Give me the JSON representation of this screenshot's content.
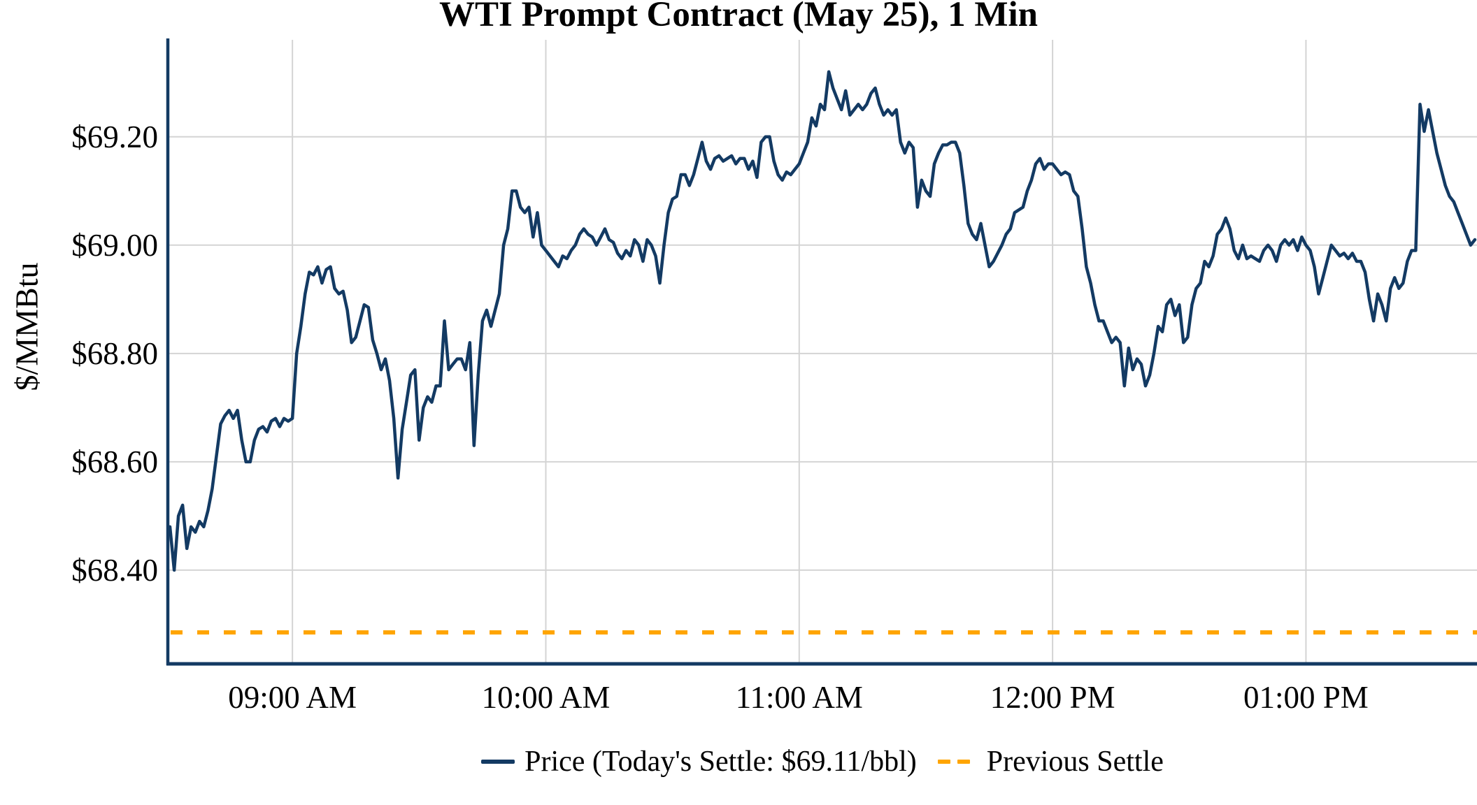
{
  "chart_data": {
    "type": "line",
    "title": "WTI Prompt Contract (May 25), 1 Min",
    "ylabel": "$/MMBtu",
    "grid": true,
    "x_axis": {
      "tick_labels": [
        "09:00 AM",
        "10:00 AM",
        "11:00 AM",
        "12:00 PM",
        "01:00 PM"
      ],
      "tick_minutes_from_9am": [
        0,
        60,
        120,
        180,
        240
      ],
      "xlim_minutes_from_9am": [
        -29.5,
        280.5
      ]
    },
    "y_axis": {
      "tick_labels": [
        "$69.20",
        "$69.00",
        "$68.80",
        "$68.60",
        "$68.40"
      ],
      "tick_values": [
        69.2,
        69.0,
        68.8,
        68.6,
        68.4
      ],
      "ylim": [
        68.227,
        69.379
      ]
    },
    "legend": {
      "position": "bottom-center",
      "entries": [
        {
          "label": "Price (Today's Settle: $69.11/bbl)",
          "style": "solid",
          "color": "#133a63"
        },
        {
          "label": "Previous Settle",
          "style": "dashed",
          "color": "#ffa500"
        }
      ]
    },
    "today_settle_text": "$69.11/bbl",
    "series": [
      {
        "name": "Price",
        "type": "line",
        "color": "#133a63",
        "start_time": "08:31 AM",
        "start_minutes_from_9am": -29,
        "interval_minutes": 1,
        "values": [
          68.48,
          68.4,
          68.5,
          68.52,
          68.44,
          68.48,
          68.47,
          68.49,
          68.48,
          68.51,
          68.55,
          68.61,
          68.67,
          68.685,
          68.695,
          68.68,
          68.695,
          68.64,
          68.6,
          68.6,
          68.64,
          68.66,
          68.665,
          68.655,
          68.675,
          68.68,
          68.665,
          68.68,
          68.675,
          68.68,
          68.8,
          68.85,
          68.91,
          68.95,
          68.945,
          68.96,
          68.93,
          68.955,
          68.96,
          68.92,
          68.91,
          68.915,
          68.88,
          68.82,
          68.83,
          68.86,
          68.89,
          68.885,
          68.825,
          68.8,
          68.77,
          68.79,
          68.75,
          68.68,
          68.57,
          68.66,
          68.71,
          68.76,
          68.77,
          68.64,
          68.7,
          68.72,
          68.71,
          68.74,
          68.74,
          68.86,
          68.77,
          68.78,
          68.79,
          68.79,
          68.77,
          68.82,
          68.63,
          68.76,
          68.86,
          68.88,
          68.85,
          68.88,
          68.91,
          69.0,
          69.03,
          69.1,
          69.1,
          69.07,
          69.06,
          69.07,
          69.015,
          69.06,
          69.0,
          68.99,
          68.98,
          68.97,
          68.96,
          68.98,
          68.975,
          68.99,
          69.0,
          69.02,
          69.03,
          69.02,
          69.015,
          69.0,
          69.015,
          69.03,
          69.01,
          69.005,
          68.985,
          68.975,
          68.99,
          68.98,
          69.01,
          69.0,
          68.97,
          69.01,
          69.0,
          68.98,
          68.93,
          69.0,
          69.06,
          69.085,
          69.09,
          69.13,
          69.13,
          69.11,
          69.13,
          69.16,
          69.19,
          69.155,
          69.14,
          69.16,
          69.165,
          69.155,
          69.16,
          69.165,
          69.15,
          69.16,
          69.16,
          69.14,
          69.155,
          69.125,
          69.19,
          69.2,
          69.2,
          69.155,
          69.13,
          69.12,
          69.135,
          69.13,
          69.14,
          69.15,
          69.17,
          69.19,
          69.235,
          69.22,
          69.26,
          69.25,
          69.32,
          69.29,
          69.27,
          69.25,
          69.285,
          69.24,
          69.25,
          69.26,
          69.25,
          69.26,
          69.28,
          69.29,
          69.26,
          69.24,
          69.25,
          69.24,
          69.25,
          69.19,
          69.17,
          69.19,
          69.18,
          69.07,
          69.12,
          69.1,
          69.09,
          69.15,
          69.17,
          69.185,
          69.185,
          69.19,
          69.19,
          69.17,
          69.11,
          69.04,
          69.02,
          69.01,
          69.04,
          69.0,
          68.96,
          68.97,
          68.985,
          69.0,
          69.02,
          69.03,
          69.06,
          69.065,
          69.07,
          69.1,
          69.12,
          69.15,
          69.16,
          69.14,
          69.15,
          69.15,
          69.14,
          69.13,
          69.135,
          69.13,
          69.1,
          69.09,
          69.03,
          68.96,
          68.93,
          68.89,
          68.86,
          68.86,
          68.84,
          68.82,
          68.83,
          68.82,
          68.74,
          68.81,
          68.77,
          68.79,
          68.78,
          68.74,
          68.76,
          68.8,
          68.85,
          68.84,
          68.89,
          68.9,
          68.87,
          68.89,
          68.82,
          68.83,
          68.89,
          68.92,
          68.93,
          68.97,
          68.96,
          68.98,
          69.02,
          69.03,
          69.05,
          69.03,
          68.99,
          68.975,
          69.0,
          68.975,
          68.98,
          68.975,
          68.97,
          68.99,
          69.0,
          68.99,
          68.97,
          69.0,
          69.01,
          69.0,
          69.01,
          68.99,
          69.015,
          69.0,
          68.99,
          68.96,
          68.91,
          68.94,
          68.97,
          69.0,
          68.99,
          68.98,
          68.985,
          68.975,
          68.985,
          68.97,
          68.97,
          68.95,
          68.9,
          68.86,
          68.91,
          68.89,
          68.86,
          68.92,
          68.94,
          68.92,
          68.93,
          68.97,
          68.99,
          68.99,
          69.26,
          69.21,
          69.25,
          69.21,
          69.17,
          69.14,
          69.11,
          69.09,
          69.08,
          69.06,
          69.04,
          69.02,
          69.0,
          69.01
        ]
      },
      {
        "name": "Previous Settle",
        "type": "hline",
        "color": "#ffa500",
        "value": 68.285
      }
    ]
  },
  "colors": {
    "price_line": "#133a63",
    "previous_settle_line": "#ffa500",
    "gridline": "#d4d4d4",
    "axis": "#133a63",
    "text": "#000000",
    "background": "#ffffff"
  }
}
